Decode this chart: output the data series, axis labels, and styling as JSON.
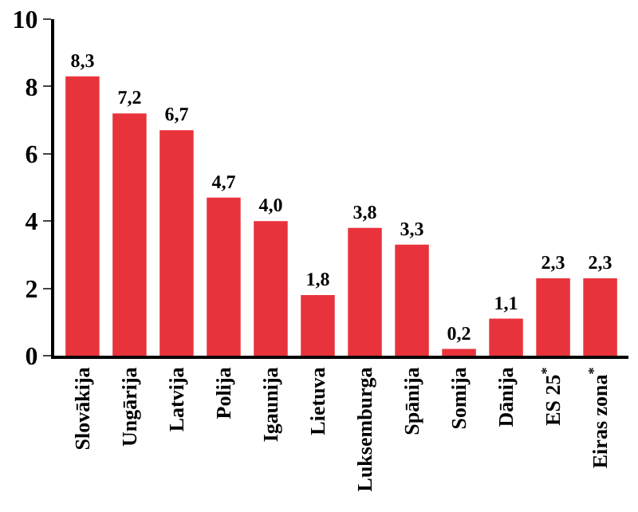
{
  "chart_data": {
    "type": "bar",
    "categories": [
      "Slovākija",
      "Ungārija",
      "Latvija",
      "Polija",
      "Igaunija",
      "Lietuva",
      "Luksemburga",
      "Spānija",
      "Somija",
      "Dānija",
      "ES 25$^{*}$",
      "Eiras zona$^{*}$"
    ],
    "values": [
      8.3,
      7.2,
      6.7,
      4.7,
      4.0,
      1.8,
      3.8,
      3.3,
      0.2,
      1.1,
      2.3,
      2.3
    ],
    "value_labels": [
      "8,3",
      "7,2",
      "6,7",
      "4,7",
      "4,0",
      "1,8",
      "3,8",
      "3,3",
      "0,2",
      "1,1",
      "2,3",
      "2,3"
    ],
    "color": "#e8333c",
    "ylim": [
      0,
      10
    ],
    "yticks": [
      0,
      2,
      4,
      6,
      8,
      10
    ]
  }
}
